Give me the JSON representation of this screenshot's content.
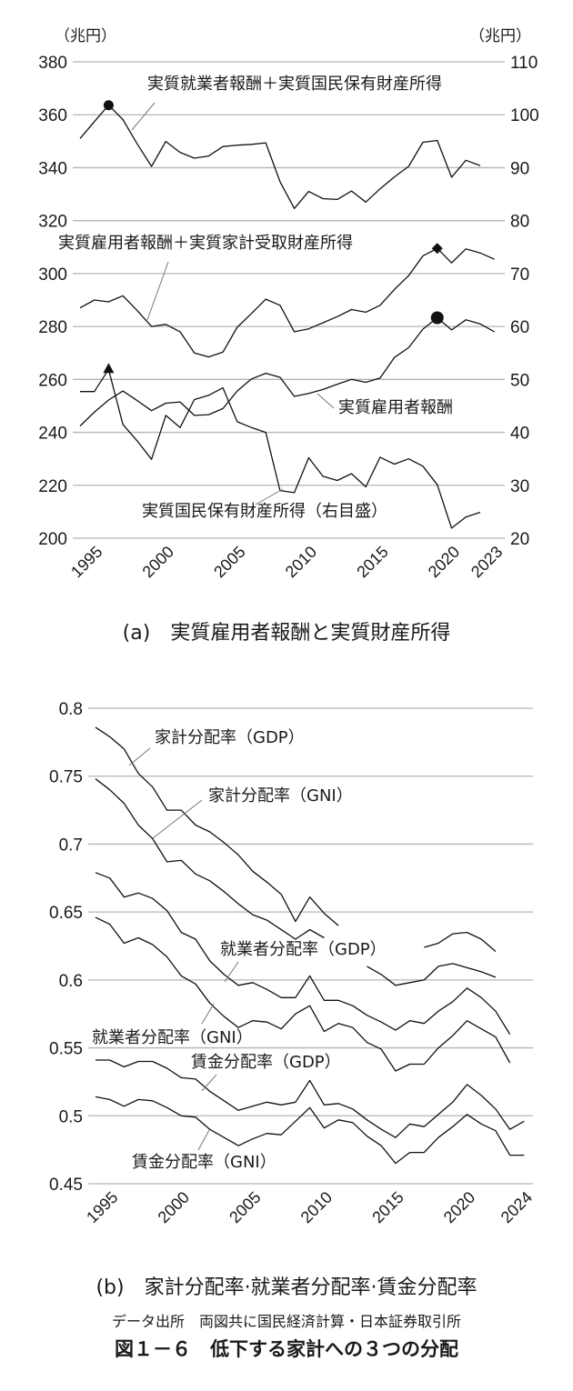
{
  "chart_data": [
    {
      "type": "line",
      "left_unit": "（兆円）",
      "right_unit": "（兆円）",
      "caption": "(a)　実質雇用者報酬と実質財産所得",
      "left_axis": {
        "range": [
          200,
          380
        ],
        "ticks": [
          "200",
          "220",
          "240",
          "260",
          "280",
          "300",
          "320",
          "340",
          "360",
          "380"
        ]
      },
      "right_axis": {
        "range": [
          20,
          110
        ],
        "ticks": [
          "20",
          "30",
          "40",
          "50",
          "60",
          "70",
          "80",
          "90",
          "100",
          "110"
        ]
      },
      "x_ticks": [
        "1995",
        "2000",
        "2005",
        "2010",
        "2015",
        "2020",
        "2023"
      ],
      "grid": true,
      "x": [
        1994,
        1995,
        1996,
        1997,
        1998,
        1999,
        2000,
        2001,
        2002,
        2003,
        2004,
        2005,
        2006,
        2007,
        2008,
        2009,
        2010,
        2011,
        2012,
        2013,
        2014,
        2015,
        2016,
        2017,
        2018,
        2019,
        2020,
        2021,
        2022,
        2023
      ],
      "series": [
        {
          "name": "実質就業者報酬＋実質国民保有財産所得",
          "axis": "left",
          "marker": {
            "year": 1996,
            "shape": "circle"
          },
          "values": [
            351,
            357.4,
            363.6,
            358.2,
            349,
            340.5,
            349.9,
            345.8,
            343.6,
            344.4,
            348,
            348.5,
            348.8,
            349.4,
            334.7,
            324.6,
            331,
            328.3,
            328,
            331.2,
            327,
            332,
            336.5,
            340.5,
            349.6,
            350.3,
            336.4,
            342.8,
            340.8,
            null
          ]
        },
        {
          "name": "実質雇用者報酬＋実質家計受取財産所得",
          "axis": "left",
          "marker": {
            "year": 2019,
            "shape": "diamond"
          },
          "values": [
            287,
            290,
            289.3,
            291.6,
            286,
            280,
            280.8,
            278,
            270,
            268.5,
            270.3,
            279.7,
            284.9,
            290.3,
            288,
            278,
            279.1,
            281.4,
            283.7,
            286.4,
            285.4,
            288,
            294,
            299.2,
            306.7,
            309.5,
            304,
            309.3,
            307.8,
            305.4
          ]
        },
        {
          "name": "実質雇用者報酬",
          "axis": "left",
          "marker": {
            "year": 2019,
            "shape": "circle"
          },
          "values": [
            242.4,
            247.6,
            252.2,
            255.6,
            252,
            248.2,
            251,
            251.5,
            246.4,
            246.7,
            249,
            255.6,
            260.2,
            262.3,
            260.8,
            253.6,
            254.7,
            256.2,
            258.2,
            260,
            258.9,
            260.5,
            268.3,
            272,
            279,
            283.3,
            278.7,
            282.5,
            281,
            278
          ]
        },
        {
          "name": "実質国民保有財産所得（右目盛）",
          "axis": "right",
          "marker": {
            "year": 1996,
            "shape": "triangle"
          },
          "values": [
            47.7,
            47.7,
            51.9,
            41.5,
            38.4,
            34.9,
            43.2,
            40.9,
            46.2,
            47,
            48.4,
            42,
            40.9,
            40,
            29,
            28.6,
            35.2,
            31.7,
            30.9,
            32.2,
            29.7,
            35.3,
            34,
            35,
            33.6,
            30.1,
            21.9,
            24,
            24.9,
            null
          ]
        }
      ]
    },
    {
      "type": "line",
      "caption": "(b)　家計分配率·就業者分配率·賃金分配率",
      "left_axis": {
        "range": [
          0.45,
          0.8
        ],
        "ticks": [
          "0.45",
          "0.5",
          "0.55",
          "0.6",
          "0.65",
          "0.7",
          "0.75",
          "0.8"
        ]
      },
      "x_ticks": [
        "1995",
        "2000",
        "2005",
        "2010",
        "2015",
        "2020",
        "2024"
      ],
      "grid": true,
      "x": [
        1994,
        1995,
        1996,
        1997,
        1998,
        1999,
        2000,
        2001,
        2002,
        2003,
        2004,
        2005,
        2006,
        2007,
        2008,
        2009,
        2010,
        2011,
        2012,
        2013,
        2014,
        2015,
        2016,
        2017,
        2018,
        2019,
        2020,
        2021,
        2022,
        2023,
        2024
      ],
      "series": [
        {
          "name": "家計分配率（GDP）",
          "values": [
            0.786,
            0.779,
            0.77,
            0.752,
            0.742,
            0.725,
            0.725,
            0.714,
            0.709,
            0.701,
            0.692,
            0.68,
            0.672,
            0.663,
            0.643,
            0.661,
            0.649,
            0.64,
            null,
            null,
            null,
            null,
            null,
            0.624,
            0.627,
            0.634,
            0.635,
            0.63,
            0.621,
            null,
            null
          ]
        },
        {
          "name": "家計分配率（GNI）",
          "values": [
            0.748,
            0.74,
            0.73,
            0.714,
            0.704,
            0.687,
            0.688,
            0.678,
            0.673,
            0.665,
            0.656,
            0.648,
            0.644,
            0.637,
            0.63,
            0.637,
            0.631,
            null,
            null,
            0.61,
            0.604,
            0.596,
            0.598,
            0.6,
            0.61,
            0.612,
            0.609,
            0.606,
            0.602,
            null,
            null
          ]
        },
        {
          "name": "就業者分配率（GDP）",
          "values": [
            0.679,
            0.675,
            0.661,
            0.664,
            0.66,
            0.651,
            0.635,
            0.63,
            0.614,
            0.604,
            0.596,
            0.598,
            0.593,
            0.587,
            0.587,
            0.603,
            0.585,
            0.585,
            0.581,
            0.574,
            0.569,
            0.563,
            0.57,
            0.568,
            0.577,
            0.584,
            0.594,
            0.587,
            0.577,
            0.56,
            null
          ]
        },
        {
          "name": "就業者分配率（GNI）",
          "values": [
            0.646,
            0.641,
            0.627,
            0.631,
            0.626,
            0.617,
            0.603,
            0.597,
            0.583,
            0.573,
            0.565,
            0.57,
            0.569,
            0.564,
            0.575,
            0.581,
            0.562,
            0.568,
            0.565,
            0.554,
            0.549,
            0.533,
            0.538,
            0.538,
            0.55,
            0.559,
            0.57,
            0.564,
            0.558,
            0.539,
            null
          ]
        },
        {
          "name": "賃金分配率（GDP）",
          "values": [
            0.541,
            0.541,
            0.536,
            0.54,
            0.54,
            0.535,
            0.528,
            0.527,
            0.518,
            0.511,
            0.504,
            0.507,
            0.51,
            0.508,
            0.51,
            0.526,
            0.508,
            0.509,
            0.505,
            0.497,
            0.49,
            0.484,
            0.494,
            0.492,
            0.501,
            0.51,
            0.523,
            0.515,
            0.505,
            0.49,
            0.496
          ]
        },
        {
          "name": "賃金分配率（GNI）",
          "values": [
            0.514,
            0.512,
            0.507,
            0.512,
            0.511,
            0.506,
            0.5,
            0.499,
            0.49,
            0.484,
            0.478,
            0.483,
            0.487,
            0.486,
            0.496,
            0.506,
            0.491,
            0.497,
            0.495,
            0.485,
            0.478,
            0.465,
            0.473,
            0.473,
            0.484,
            0.492,
            0.501,
            0.494,
            0.489,
            0.471,
            0.471
          ]
        }
      ]
    }
  ],
  "footer": {
    "source": "データ出所　両図共に国民経済計算・日本証券取引所",
    "figure_title": "図１－６　低下する家計への３つの分配"
  }
}
